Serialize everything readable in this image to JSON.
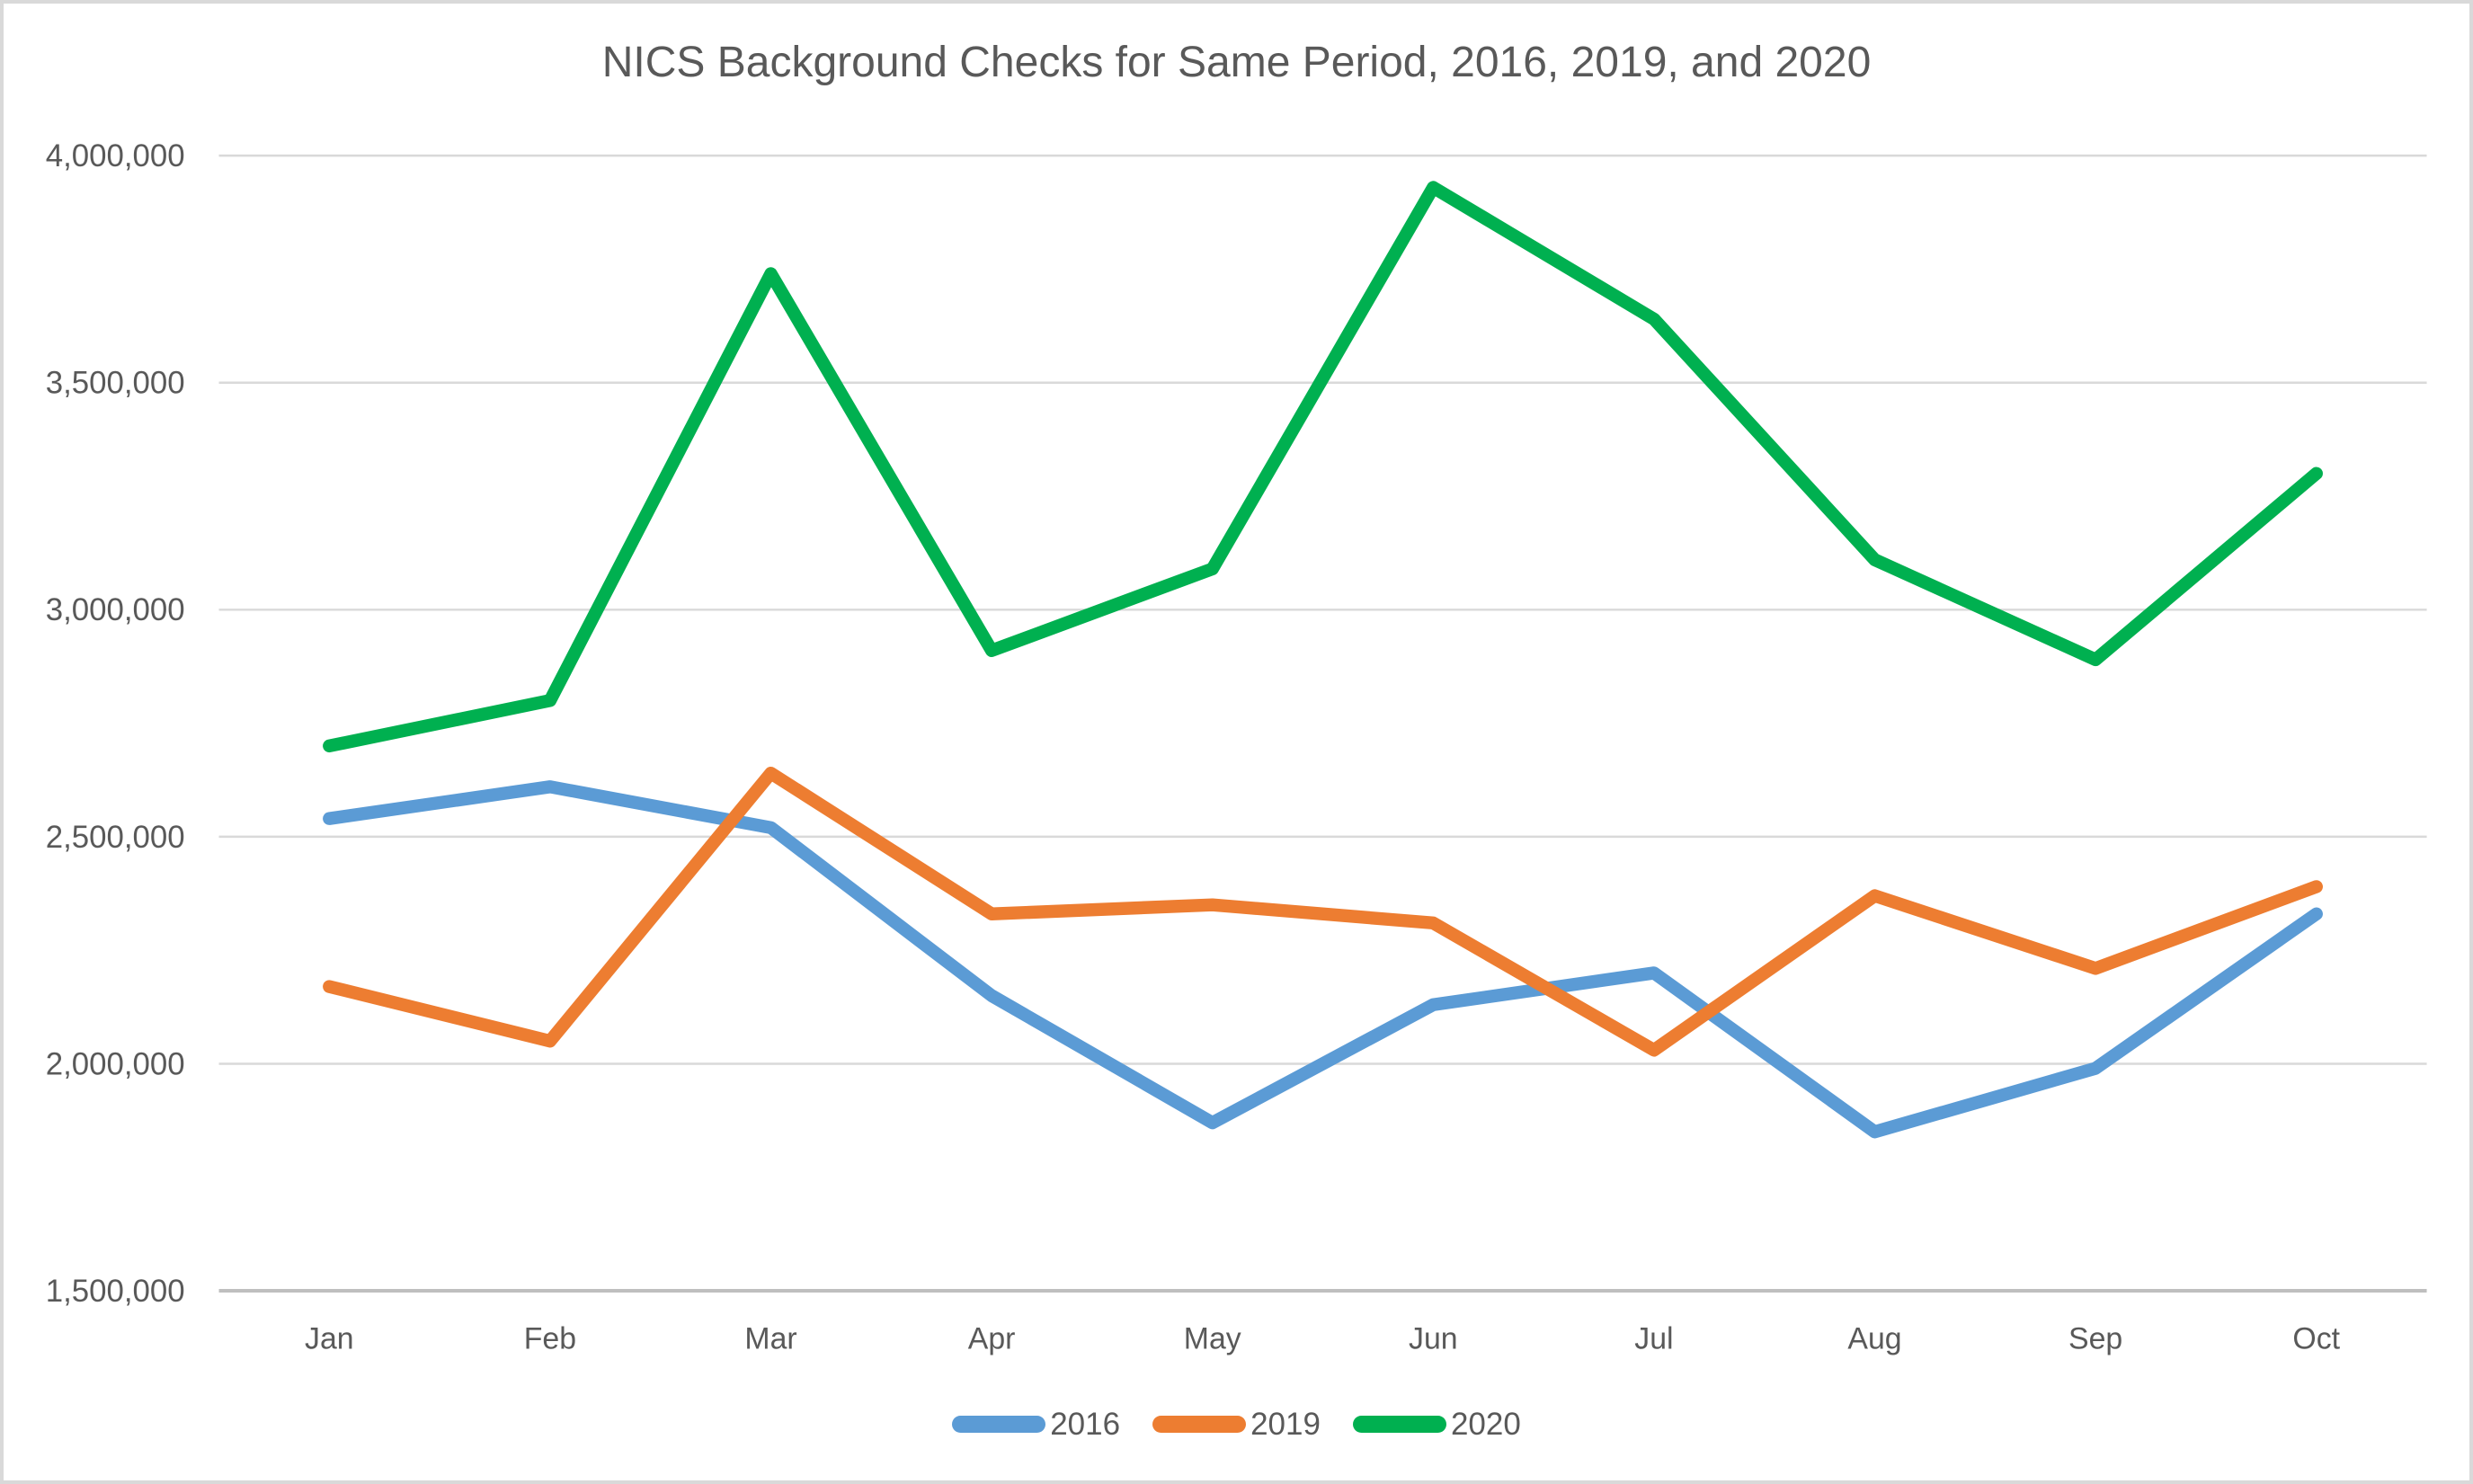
{
  "chart_data": {
    "type": "line",
    "title": "NICS Background Checks for Same Period, 2016, 2019, and 2020",
    "categories": [
      "Jan",
      "Feb",
      "Mar",
      "Apr",
      "May",
      "Jun",
      "Jul",
      "Aug",
      "Sep",
      "Oct"
    ],
    "series": [
      {
        "name": "2016",
        "color": "#5B9BD5",
        "values": [
          2540000,
          2610000,
          2520000,
          2150000,
          1870000,
          2130000,
          2200000,
          1850000,
          1990000,
          2330000
        ]
      },
      {
        "name": "2019",
        "color": "#ED7D31",
        "values": [
          2170000,
          2050000,
          2640000,
          2330000,
          2350000,
          2310000,
          2030000,
          2370000,
          2210000,
          2390000
        ]
      },
      {
        "name": "2020",
        "color": "#00B050",
        "values": [
          2700000,
          2800000,
          3740000,
          2910000,
          3090000,
          3930000,
          3640000,
          3110000,
          2890000,
          3300000
        ]
      }
    ],
    "y_axis": {
      "min": 1500000,
      "max": 4000000,
      "step": 500000,
      "tick_labels": [
        "1,500,000",
        "2,000,000",
        "2,500,000",
        "3,000,000",
        "3,500,000",
        "4,000,000"
      ]
    },
    "x_axis": {
      "tick_labels": [
        "Jan",
        "Feb",
        "Mar",
        "Apr",
        "May",
        "Jun",
        "Jul",
        "Aug",
        "Sep",
        "Oct"
      ]
    },
    "legend_position": "bottom-center",
    "grid": "horizontal",
    "colors": {
      "text": "#595959",
      "gridline": "#D9D9D9",
      "axis_line": "#BFBFBF",
      "background": "#FFFFFF",
      "frame_border": "#D9D9D9"
    }
  }
}
